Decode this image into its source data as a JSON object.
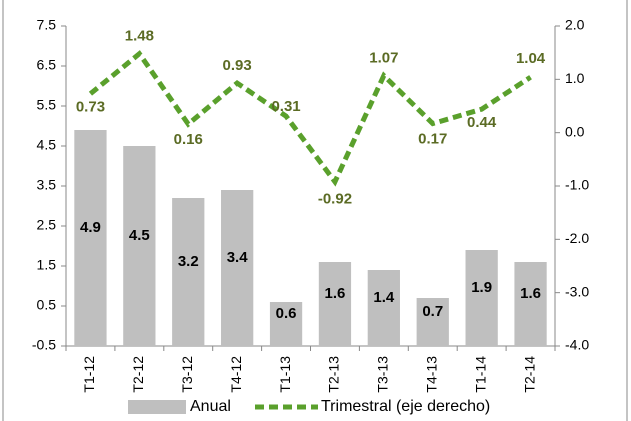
{
  "chart_data": {
    "type": "bar_line",
    "categories": [
      "T1-12",
      "T2-12",
      "T3-12",
      "T4-12",
      "T1-13",
      "T2-13",
      "T3-13",
      "T4-13",
      "T1-14",
      "T2-14"
    ],
    "series": [
      {
        "name": "Anual",
        "type": "bar",
        "color": "#bfbfbf",
        "values": [
          4.9,
          4.5,
          3.2,
          3.4,
          0.6,
          1.6,
          1.4,
          0.7,
          1.9,
          1.6
        ]
      },
      {
        "name": "Trimestral (eje derecho)",
        "type": "line",
        "axis": "y2",
        "color": "#5aa02c",
        "values": [
          0.73,
          1.48,
          0.16,
          0.93,
          0.31,
          -0.92,
          1.07,
          0.17,
          0.44,
          1.04
        ]
      }
    ],
    "ylim": [
      -0.5,
      7.5
    ],
    "yticks": [
      -0.5,
      0.5,
      1.5,
      2.5,
      3.5,
      4.5,
      5.5,
      6.5,
      7.5
    ],
    "y2lim": [
      -4,
      2
    ],
    "y2ticks": [
      {
        "value": -4,
        "label": "-4.0"
      },
      {
        "value": -3,
        "label": "-3.0"
      },
      {
        "value": -2,
        "label": "-2.0"
      },
      {
        "value": -1,
        "label": "-1.0"
      },
      {
        "value": 0,
        "label": "0.0"
      },
      {
        "value": 1,
        "label": "1.0"
      },
      {
        "value": 2,
        "label": "2.0"
      }
    ],
    "legend": "bottom"
  }
}
